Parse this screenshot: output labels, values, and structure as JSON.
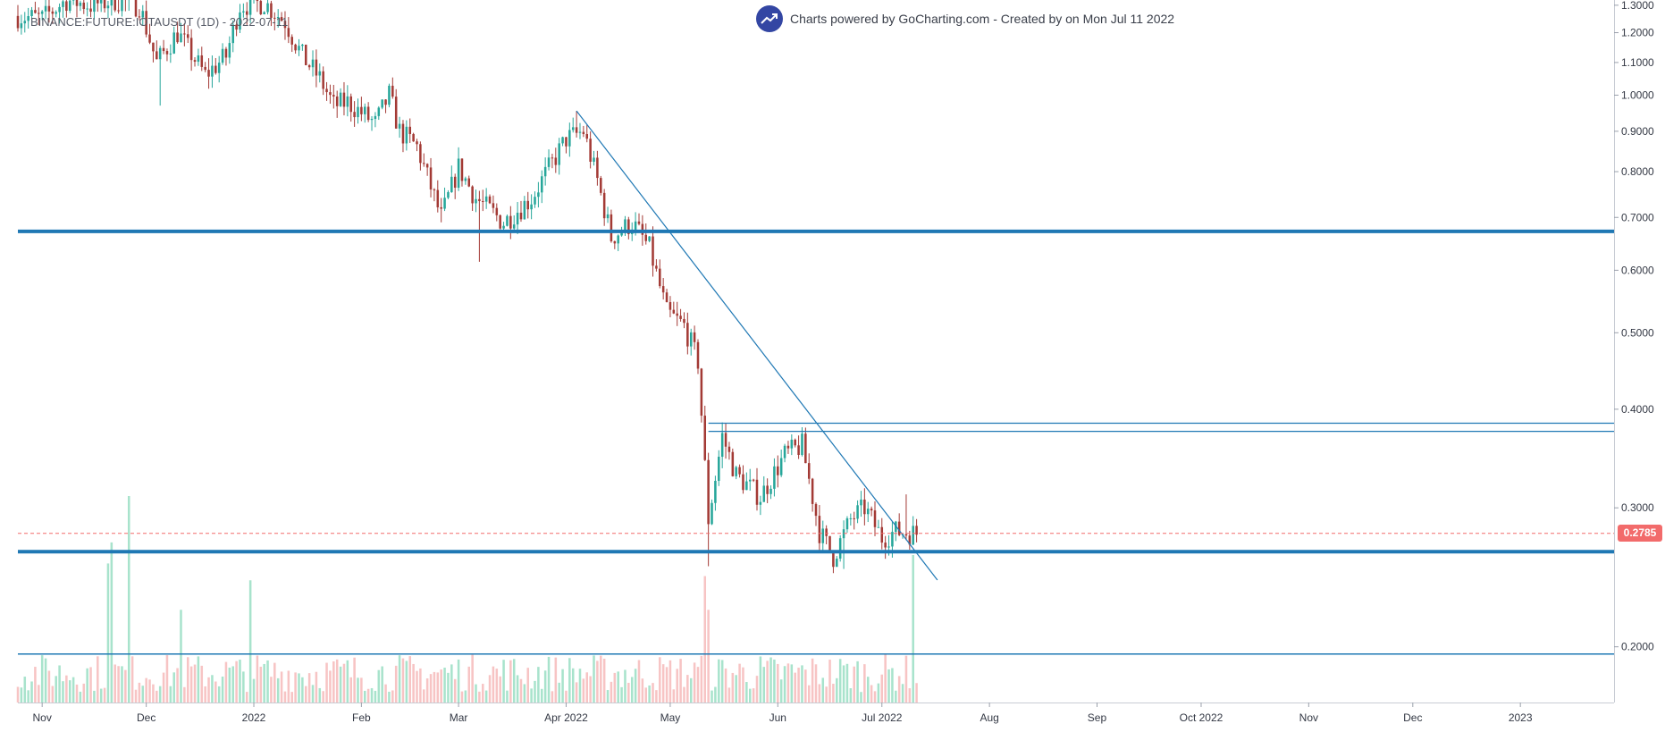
{
  "header": {
    "symbol": "BINANCE:FUTURE:IOTAUSDT (1D) - 2022-07-11",
    "brand_text": "Charts powered by GoCharting.com - Created by  on Mon Jul 11 2022",
    "brand_logo_icon": "trending-chart-icon"
  },
  "last_price": {
    "label": "0.2785",
    "value": 0.2785,
    "color": "#f26b6b"
  },
  "colors": {
    "up": "#26a69a",
    "down": "#a33a35",
    "volume_up": "#a8e3cc",
    "volume_down": "#f7c4c4",
    "line": "#1f78b4",
    "accent": "#3346a3"
  },
  "chart_data": {
    "type": "candlestick",
    "scale": "log",
    "ylim": [
      0.17,
      1.32
    ],
    "y_ticks": [
      {
        "value": 0.2,
        "label": "0.2000"
      },
      {
        "value": 0.3,
        "label": "0.3000"
      },
      {
        "value": 0.4,
        "label": "0.4000"
      },
      {
        "value": 0.5,
        "label": "0.5000"
      },
      {
        "value": 0.6,
        "label": "0.6000"
      },
      {
        "value": 0.7,
        "label": "0.7000"
      },
      {
        "value": 0.8,
        "label": "0.8000"
      },
      {
        "value": 0.9,
        "label": "0.9000"
      },
      {
        "value": 1.0,
        "label": "1.0000"
      },
      {
        "value": 1.1,
        "label": "1.1000"
      },
      {
        "value": 1.2,
        "label": "1.2000"
      },
      {
        "value": 1.3,
        "label": "1.3000"
      }
    ],
    "x_range": [
      "2021-10-25",
      "2023-01-28"
    ],
    "x_ticks": [
      {
        "date": "2021-11-01",
        "label": "Nov"
      },
      {
        "date": "2021-12-01",
        "label": "Dec"
      },
      {
        "date": "2022-01-01",
        "label": "2022"
      },
      {
        "date": "2022-02-01",
        "label": "Feb"
      },
      {
        "date": "2022-03-01",
        "label": "Mar"
      },
      {
        "date": "2022-04-01",
        "label": "Apr 2022"
      },
      {
        "date": "2022-05-01",
        "label": "May"
      },
      {
        "date": "2022-06-01",
        "label": "Jun"
      },
      {
        "date": "2022-07-01",
        "label": "Jul 2022"
      },
      {
        "date": "2022-08-01",
        "label": "Aug"
      },
      {
        "date": "2022-09-01",
        "label": "Sep"
      },
      {
        "date": "2022-10-01",
        "label": "Oct 2022"
      },
      {
        "date": "2022-11-01",
        "label": "Nov"
      },
      {
        "date": "2022-12-01",
        "label": "Dec"
      },
      {
        "date": "2023-01-01",
        "label": "2023"
      }
    ],
    "close_anchors": [
      [
        "2021-10-25",
        1.26
      ],
      [
        "2021-11-01",
        1.25
      ],
      [
        "2021-11-08",
        1.32
      ],
      [
        "2021-11-15",
        1.3
      ],
      [
        "2021-11-22",
        1.32
      ],
      [
        "2021-11-29",
        1.3
      ],
      [
        "2021-12-04",
        1.1
      ],
      [
        "2021-12-10",
        1.2
      ],
      [
        "2021-12-18",
        1.06
      ],
      [
        "2021-12-24",
        1.12
      ],
      [
        "2021-12-28",
        1.3
      ],
      [
        "2022-01-04",
        1.31
      ],
      [
        "2022-01-10",
        1.24
      ],
      [
        "2022-01-15",
        1.12
      ],
      [
        "2022-01-20",
        1.05
      ],
      [
        "2022-01-24",
        0.97
      ],
      [
        "2022-01-28",
        0.98
      ],
      [
        "2022-02-05",
        0.92
      ],
      [
        "2022-02-09",
        1.0
      ],
      [
        "2022-02-12",
        0.9
      ],
      [
        "2022-02-17",
        0.86
      ],
      [
        "2022-02-24",
        0.7
      ],
      [
        "2022-03-01",
        0.81
      ],
      [
        "2022-03-06",
        0.74
      ],
      [
        "2022-03-14",
        0.69
      ],
      [
        "2022-03-22",
        0.74
      ],
      [
        "2022-04-01",
        0.88
      ],
      [
        "2022-04-06",
        0.9
      ],
      [
        "2022-04-10",
        0.78
      ],
      [
        "2022-04-14",
        0.66
      ],
      [
        "2022-04-20",
        0.69
      ],
      [
        "2022-04-25",
        0.64
      ],
      [
        "2022-04-30",
        0.53
      ],
      [
        "2022-05-05",
        0.51
      ],
      [
        "2022-05-09",
        0.46
      ],
      [
        "2022-05-12",
        0.29
      ],
      [
        "2022-05-16",
        0.37
      ],
      [
        "2022-05-20",
        0.33
      ],
      [
        "2022-05-27",
        0.31
      ],
      [
        "2022-06-03",
        0.35
      ],
      [
        "2022-06-08",
        0.36
      ],
      [
        "2022-06-13",
        0.28
      ],
      [
        "2022-06-17",
        0.26
      ],
      [
        "2022-06-22",
        0.29
      ],
      [
        "2022-06-26",
        0.3
      ],
      [
        "2022-07-01",
        0.275
      ],
      [
        "2022-07-05",
        0.28
      ],
      [
        "2022-07-11",
        0.2785
      ]
    ],
    "volume_ylim": [
      0,
      4.9
    ],
    "volume_spikes": [
      [
        "2021-11-20",
        3.3
      ],
      [
        "2021-11-21",
        3.8
      ],
      [
        "2021-11-26",
        4.9
      ],
      [
        "2021-12-11",
        2.2
      ],
      [
        "2021-12-31",
        2.9
      ],
      [
        "2022-05-11",
        3.0
      ],
      [
        "2022-05-12",
        2.2
      ],
      [
        "2022-07-10",
        3.5
      ]
    ],
    "horizontal_lines": [
      {
        "value": 0.672,
        "style": "thick"
      },
      {
        "value": 0.264,
        "style": "thick"
      },
      {
        "value": 0.384,
        "style": "thin",
        "from": "2022-05-12"
      },
      {
        "value": 0.375,
        "style": "thin",
        "from": "2022-05-12"
      }
    ],
    "trendline": {
      "from": [
        "2022-04-04",
        0.955
      ],
      "to": [
        "2022-07-17",
        0.243
      ]
    },
    "volume_line": {
      "value": 1.15
    }
  }
}
